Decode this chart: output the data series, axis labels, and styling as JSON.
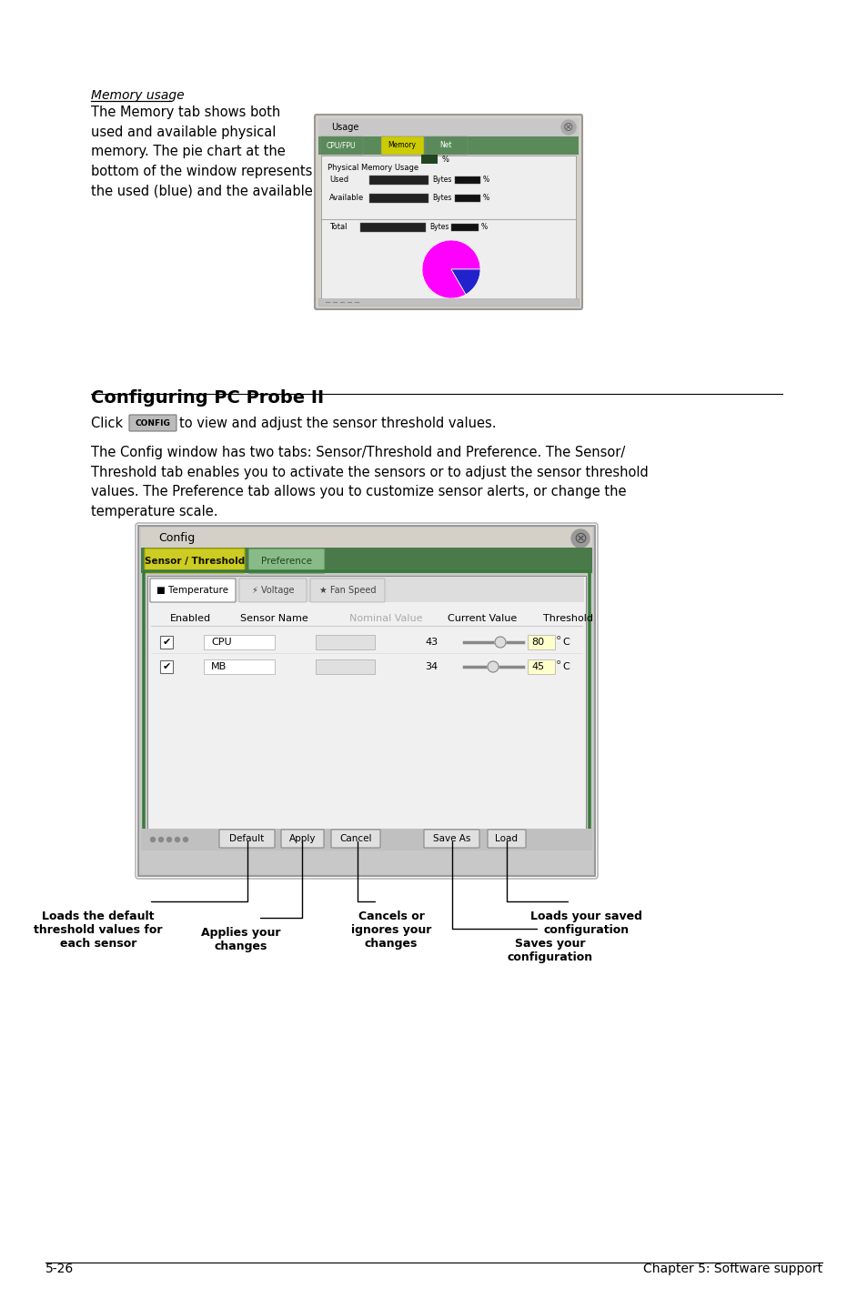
{
  "bg_color": "#ffffff",
  "page_number": "5-26",
  "page_footer_right": "Chapter 5: Software support",
  "section_title": "Configuring PC Probe II",
  "click_text": "to view and adjust the sensor threshold values.",
  "para1": "The Config window has two tabs: Sensor/Threshold and Preference. The Sensor/\nThreshold tab enables you to activate the sensors or to adjust the sensor threshold\nvalues. The Preference tab allows you to customize sensor alerts, or change the\ntemperature scale.",
  "memory_label": "Memory usage",
  "memory_text": "The Memory tab shows both\nused and available physical\nmemory. The pie chart at the\nbottom of the window represents\nthe used (blue) and the available",
  "annotation_default": "Loads the default\nthreshold values for\neach sensor",
  "annotation_apply": "Applies your\nchanges",
  "annotation_cancel": "Cancels or\nignores your\nchanges",
  "annotation_load": "Loads your saved\nconfiguration",
  "annotation_saveas": "Saves your\nconfiguration"
}
